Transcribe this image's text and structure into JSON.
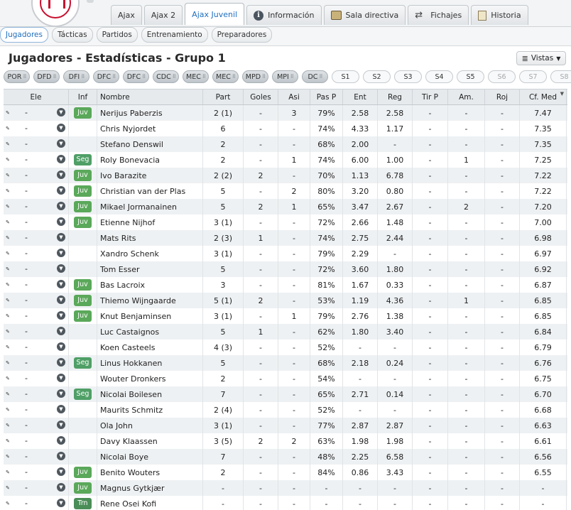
{
  "top_tabs": [
    {
      "label": "Ajax",
      "icon": ""
    },
    {
      "label": "Ajax 2",
      "icon": ""
    },
    {
      "label": "Ajax Juvenil",
      "icon": "",
      "active": true
    },
    {
      "label": "Información",
      "icon": "info-icon"
    },
    {
      "label": "Sala directiva",
      "icon": "boardroom-icon"
    },
    {
      "label": "Fichajes",
      "icon": "transfer-arrows-icon"
    },
    {
      "label": "Historia",
      "icon": "history-book-icon"
    }
  ],
  "sub_tabs": [
    {
      "label": "Jugadores",
      "active": true
    },
    {
      "label": "Tácticas"
    },
    {
      "label": "Partidos"
    },
    {
      "label": "Entrenamiento"
    },
    {
      "label": "Preparadores"
    }
  ],
  "page_title": "Jugadores - Estadísticas - Grupo 1",
  "views_button": {
    "label": "Vistas",
    "icon": "menu-lines-icon"
  },
  "position_filters": [
    {
      "label": "POR",
      "selected": true
    },
    {
      "label": "DFD",
      "selected": true
    },
    {
      "label": "DFI",
      "selected": true
    },
    {
      "label": "DFC",
      "selected": true
    },
    {
      "label": "DFC",
      "selected": true
    },
    {
      "label": "CDC",
      "selected": true
    },
    {
      "label": "MEC",
      "selected": true
    },
    {
      "label": "MEC",
      "selected": true
    },
    {
      "label": "MPD",
      "selected": true
    },
    {
      "label": "MPI",
      "selected": true
    },
    {
      "label": "DC",
      "selected": true
    },
    {
      "label": "S1",
      "selected": false
    },
    {
      "label": "S2",
      "selected": false
    },
    {
      "label": "S3",
      "selected": false
    },
    {
      "label": "S4",
      "selected": false
    },
    {
      "label": "S5",
      "selected": false
    },
    {
      "label": "S6",
      "selected": false,
      "disabled": true
    },
    {
      "label": "S7",
      "selected": false,
      "disabled": true
    },
    {
      "label": "S8",
      "selected": false,
      "disabled": true
    }
  ],
  "table": {
    "columns": [
      "Ele",
      "Inf",
      "Nombre",
      "Part",
      "Goles",
      "Asi",
      "Pas P",
      "Ent",
      "Reg",
      "Tir P",
      "Am.",
      "Roj",
      "Cf. Med"
    ],
    "rows": [
      {
        "ele": "-",
        "inf": "Juv",
        "name": "Nerijus Paberzis",
        "part": "2 (1)",
        "goles": "-",
        "asi": "3",
        "pas": "79%",
        "ent": "2.58",
        "reg": "2.58",
        "tir": "-",
        "am": "-",
        "roj": "-",
        "cf": "7.47"
      },
      {
        "ele": "-",
        "inf": "",
        "name": "Chris Nyjordet",
        "part": "6",
        "goles": "-",
        "asi": "-",
        "pas": "74%",
        "ent": "4.33",
        "reg": "1.17",
        "tir": "-",
        "am": "-",
        "roj": "-",
        "cf": "7.35"
      },
      {
        "ele": "-",
        "inf": "",
        "name": "Stefano Denswil",
        "part": "2",
        "goles": "-",
        "asi": "-",
        "pas": "68%",
        "ent": "2.00",
        "reg": "-",
        "tir": "-",
        "am": "-",
        "roj": "-",
        "cf": "7.35"
      },
      {
        "ele": "-",
        "inf": "Seg",
        "name": "Roly Bonevacia",
        "part": "2",
        "goles": "-",
        "asi": "1",
        "pas": "74%",
        "ent": "6.00",
        "reg": "1.00",
        "tir": "-",
        "am": "1",
        "roj": "-",
        "cf": "7.25"
      },
      {
        "ele": "-",
        "inf": "Juv",
        "name": "Ivo Barazite",
        "part": "2 (2)",
        "goles": "2",
        "asi": "-",
        "pas": "70%",
        "ent": "1.13",
        "reg": "6.78",
        "tir": "-",
        "am": "-",
        "roj": "-",
        "cf": "7.22"
      },
      {
        "ele": "-",
        "inf": "Juv",
        "name": "Christian van der Plas",
        "part": "5",
        "goles": "-",
        "asi": "2",
        "pas": "80%",
        "ent": "3.20",
        "reg": "0.80",
        "tir": "-",
        "am": "-",
        "roj": "-",
        "cf": "7.22"
      },
      {
        "ele": "-",
        "inf": "Juv",
        "name": "Mikael Jormanainen",
        "part": "5",
        "goles": "2",
        "asi": "1",
        "pas": "65%",
        "ent": "3.47",
        "reg": "2.67",
        "tir": "-",
        "am": "2",
        "roj": "-",
        "cf": "7.20"
      },
      {
        "ele": "-",
        "inf": "Juv",
        "name": "Etienne Nijhof",
        "part": "3 (1)",
        "goles": "-",
        "asi": "-",
        "pas": "72%",
        "ent": "2.66",
        "reg": "1.48",
        "tir": "-",
        "am": "-",
        "roj": "-",
        "cf": "7.00"
      },
      {
        "ele": "-",
        "inf": "",
        "name": "Mats Rits",
        "part": "2 (3)",
        "goles": "1",
        "asi": "-",
        "pas": "74%",
        "ent": "2.75",
        "reg": "2.44",
        "tir": "-",
        "am": "-",
        "roj": "-",
        "cf": "6.98"
      },
      {
        "ele": "-",
        "inf": "",
        "name": "Xandro Schenk",
        "part": "3 (1)",
        "goles": "-",
        "asi": "-",
        "pas": "79%",
        "ent": "2.29",
        "reg": "-",
        "tir": "-",
        "am": "-",
        "roj": "-",
        "cf": "6.97"
      },
      {
        "ele": "-",
        "inf": "",
        "name": "Tom Esser",
        "part": "5",
        "goles": "-",
        "asi": "-",
        "pas": "72%",
        "ent": "3.60",
        "reg": "1.80",
        "tir": "-",
        "am": "-",
        "roj": "-",
        "cf": "6.92"
      },
      {
        "ele": "-",
        "inf": "Juv",
        "name": "Bas Lacroix",
        "part": "3",
        "goles": "-",
        "asi": "-",
        "pas": "81%",
        "ent": "1.67",
        "reg": "0.33",
        "tir": "-",
        "am": "-",
        "roj": "-",
        "cf": "6.87"
      },
      {
        "ele": "-",
        "inf": "Juv",
        "name": "Thiemo Wijngaarde",
        "part": "5 (1)",
        "goles": "2",
        "asi": "-",
        "pas": "53%",
        "ent": "1.19",
        "reg": "4.36",
        "tir": "-",
        "am": "1",
        "roj": "-",
        "cf": "6.85"
      },
      {
        "ele": "-",
        "inf": "Juv",
        "name": "Knut Benjaminsen",
        "part": "3 (1)",
        "goles": "-",
        "asi": "1",
        "pas": "79%",
        "ent": "2.76",
        "reg": "1.38",
        "tir": "-",
        "am": "-",
        "roj": "-",
        "cf": "6.85"
      },
      {
        "ele": "-",
        "inf": "",
        "name": "Luc Castaignos",
        "part": "5",
        "goles": "1",
        "asi": "-",
        "pas": "62%",
        "ent": "1.80",
        "reg": "3.40",
        "tir": "-",
        "am": "-",
        "roj": "-",
        "cf": "6.84"
      },
      {
        "ele": "-",
        "inf": "",
        "name": "Koen Casteels",
        "part": "4 (3)",
        "goles": "-",
        "asi": "-",
        "pas": "52%",
        "ent": "-",
        "reg": "-",
        "tir": "-",
        "am": "-",
        "roj": "-",
        "cf": "6.79"
      },
      {
        "ele": "-",
        "inf": "Seg",
        "name": "Linus Hokkanen",
        "part": "5",
        "goles": "-",
        "asi": "-",
        "pas": "68%",
        "ent": "2.18",
        "reg": "0.24",
        "tir": "-",
        "am": "-",
        "roj": "-",
        "cf": "6.76"
      },
      {
        "ele": "-",
        "inf": "",
        "name": "Wouter Dronkers",
        "part": "2",
        "goles": "-",
        "asi": "-",
        "pas": "54%",
        "ent": "-",
        "reg": "-",
        "tir": "-",
        "am": "-",
        "roj": "-",
        "cf": "6.75"
      },
      {
        "ele": "-",
        "inf": "Seg",
        "name": "Nicolai Boilesen",
        "part": "7",
        "goles": "-",
        "asi": "-",
        "pas": "65%",
        "ent": "2.71",
        "reg": "0.14",
        "tir": "-",
        "am": "-",
        "roj": "-",
        "cf": "6.70"
      },
      {
        "ele": "-",
        "inf": "",
        "name": "Maurits Schmitz",
        "part": "2 (4)",
        "goles": "-",
        "asi": "-",
        "pas": "52%",
        "ent": "-",
        "reg": "-",
        "tir": "-",
        "am": "-",
        "roj": "-",
        "cf": "6.68"
      },
      {
        "ele": "-",
        "inf": "",
        "name": "Ola John",
        "part": "3 (1)",
        "goles": "-",
        "asi": "-",
        "pas": "77%",
        "ent": "2.87",
        "reg": "2.87",
        "tir": "-",
        "am": "-",
        "roj": "-",
        "cf": "6.63"
      },
      {
        "ele": "-",
        "inf": "",
        "name": "Davy Klaassen",
        "part": "3 (5)",
        "goles": "2",
        "asi": "2",
        "pas": "63%",
        "ent": "1.98",
        "reg": "1.98",
        "tir": "-",
        "am": "-",
        "roj": "-",
        "cf": "6.61"
      },
      {
        "ele": "-",
        "inf": "",
        "name": "Nicolai Boye",
        "part": "7",
        "goles": "-",
        "asi": "-",
        "pas": "48%",
        "ent": "2.25",
        "reg": "6.58",
        "tir": "-",
        "am": "-",
        "roj": "-",
        "cf": "6.56"
      },
      {
        "ele": "-",
        "inf": "Juv",
        "name": "Benito Wouters",
        "part": "2",
        "goles": "-",
        "asi": "-",
        "pas": "84%",
        "ent": "0.86",
        "reg": "3.43",
        "tir": "-",
        "am": "-",
        "roj": "-",
        "cf": "6.55"
      },
      {
        "ele": "-",
        "inf": "Juv",
        "name": "Magnus Gytkjær",
        "part": "-",
        "goles": "-",
        "asi": "-",
        "pas": "-",
        "ent": "-",
        "reg": "-",
        "tir": "-",
        "am": "-",
        "roj": "-",
        "cf": "-"
      },
      {
        "ele": "-",
        "inf": "Trn",
        "name": "Rene Osei Kofi",
        "part": "-",
        "goles": "-",
        "asi": "-",
        "pas": "-",
        "ent": "-",
        "reg": "-",
        "tir": "-",
        "am": "-",
        "roj": "-",
        "cf": "-"
      }
    ]
  }
}
